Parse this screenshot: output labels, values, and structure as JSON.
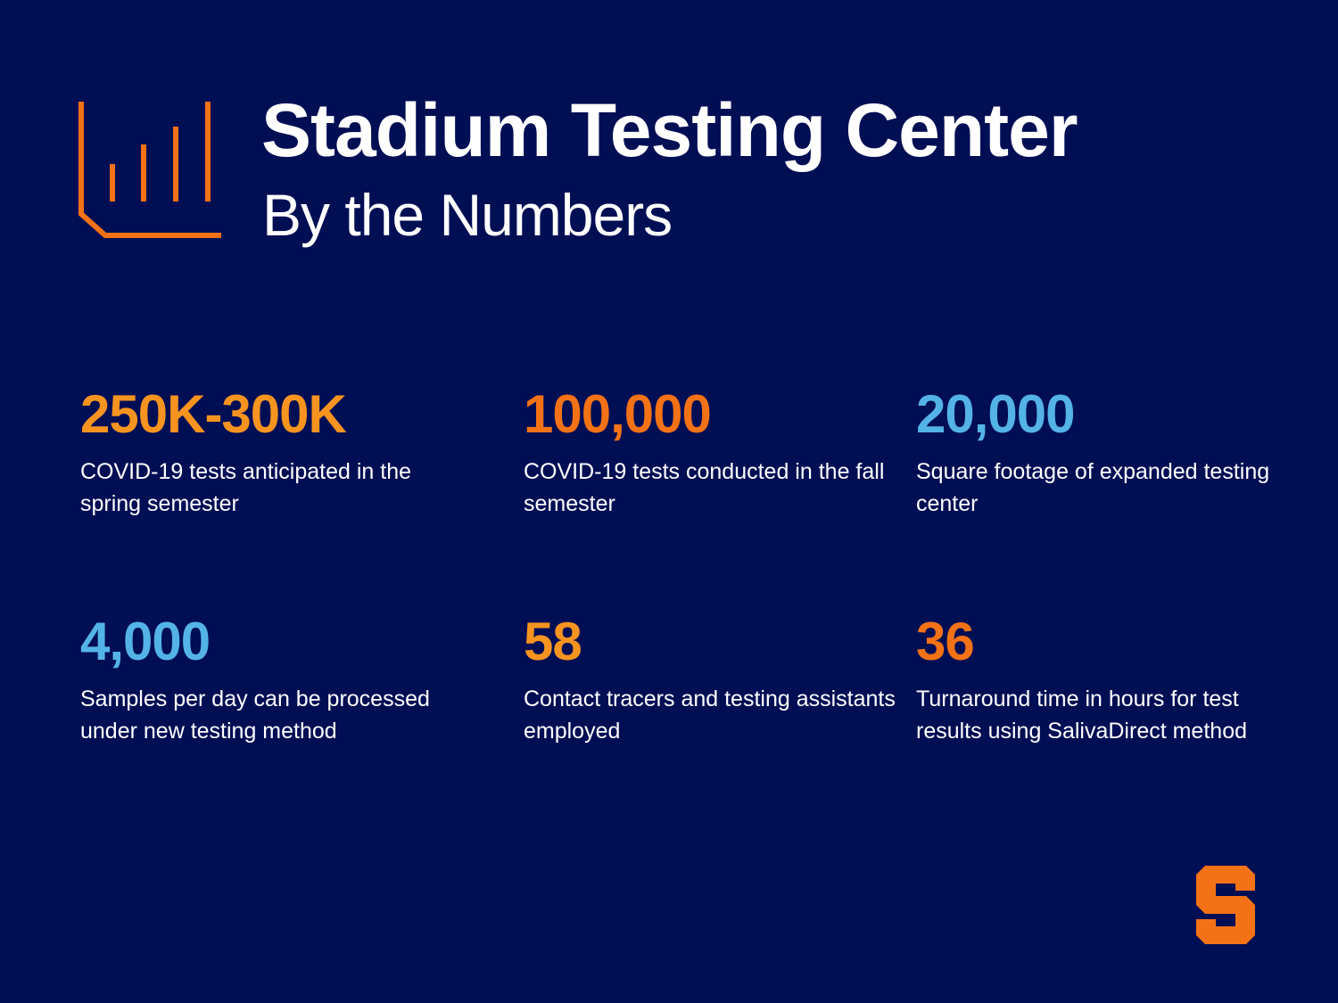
{
  "header": {
    "title": "Stadium Testing Center",
    "subtitle": "By the Numbers"
  },
  "stats": [
    {
      "value": "250K-300K",
      "description": "COVID-19 tests anticipated in the spring semester",
      "color": "#f79420"
    },
    {
      "value": "100,000",
      "description": "COVID-19 tests conducted in the fall semester",
      "color": "#f47216"
    },
    {
      "value": "20,000",
      "description": "Square footage of expanded testing center",
      "color": "#54b3e6"
    },
    {
      "value": "4,000",
      "description": "Samples per day can be processed under new testing method",
      "color": "#54b3e6"
    },
    {
      "value": "58",
      "description": "Contact tracers and testing assistants employed",
      "color": "#f79420"
    },
    {
      "value": "36",
      "description": "Turnaround time in hours for test results using SalivaDirect method",
      "color": "#f47216"
    }
  ],
  "colors": {
    "background": "#000e54",
    "accent_orange": "#f47216",
    "accent_blue": "#54b3e6"
  },
  "icons": {
    "header_icon": "bar-chart-icon",
    "logo": "block-s-logo"
  }
}
